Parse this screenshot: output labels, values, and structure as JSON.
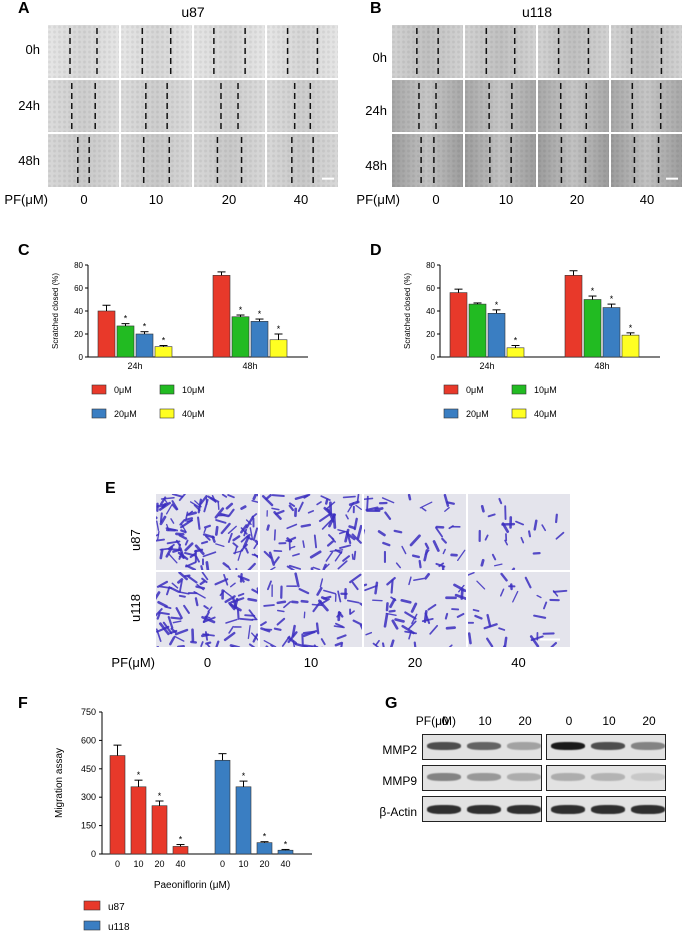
{
  "panel_labels": [
    "A",
    "B",
    "C",
    "D",
    "E",
    "F",
    "G"
  ],
  "panelA": {
    "title": "u87",
    "rows": [
      "0h",
      "24h",
      "48h"
    ],
    "pf_label": "PF(μM)",
    "doses": [
      "0",
      "10",
      "20",
      "40"
    ],
    "gaps": [
      [
        0.38,
        0.4,
        0.44,
        0.42
      ],
      [
        0.33,
        0.3,
        0.24,
        0.22
      ],
      [
        0.16,
        0.36,
        0.34,
        0.3
      ]
    ]
  },
  "panelB": {
    "title": "u118",
    "rows": [
      "0h",
      "24h",
      "48h"
    ],
    "pf_label": "PF(μM)",
    "doses": [
      "0",
      "10",
      "20",
      "40"
    ],
    "gaps": [
      [
        0.3,
        0.4,
        0.42,
        0.42
      ],
      [
        0.24,
        0.32,
        0.36,
        0.4
      ],
      [
        0.18,
        0.3,
        0.34,
        0.34
      ]
    ]
  },
  "panelE": {
    "rows": [
      "u87",
      "u118"
    ],
    "pf_label": "PF(μM)",
    "doses": [
      "0",
      "10",
      "20",
      "40"
    ],
    "density": [
      [
        0.95,
        0.6,
        0.3,
        0.18
      ],
      [
        0.7,
        0.5,
        0.35,
        0.22
      ]
    ]
  },
  "panelG": {
    "pf_label": "PF(μM)",
    "doses": [
      "0",
      "10",
      "20",
      "0",
      "10",
      "20"
    ],
    "rows": [
      "MMP2",
      "MMP9",
      "β-Actin"
    ],
    "band_intensity": [
      [
        0.7,
        0.6,
        0.3,
        0.95,
        0.7,
        0.45
      ],
      [
        0.45,
        0.35,
        0.25,
        0.25,
        0.22,
        0.12
      ],
      [
        0.85,
        0.85,
        0.85,
        0.85,
        0.85,
        0.85
      ]
    ]
  },
  "chart_data": [
    {
      "panel": "C",
      "type": "bar",
      "categories": [
        "24h",
        "48h"
      ],
      "ylabel": "Scratched closed (%)",
      "ylim": [
        0,
        80
      ],
      "yticks": [
        "0",
        "20",
        "40",
        "60",
        "80"
      ],
      "series": [
        {
          "name": "0μM",
          "color": "#e8392a",
          "values": [
            40,
            71
          ],
          "errors": [
            5,
            3
          ],
          "sig": [
            "",
            ""
          ]
        },
        {
          "name": "10μM",
          "color": "#22bb22",
          "values": [
            27,
            35
          ],
          "errors": [
            2,
            1.5
          ],
          "sig": [
            "*",
            "*"
          ]
        },
        {
          "name": "20μM",
          "color": "#3a7ec2",
          "values": [
            20,
            31
          ],
          "errors": [
            2,
            2
          ],
          "sig": [
            "*",
            "*"
          ]
        },
        {
          "name": "40μM",
          "color": "#ffff22",
          "values": [
            9,
            15
          ],
          "errors": [
            1,
            5
          ],
          "sig": [
            "*",
            "*"
          ]
        }
      ]
    },
    {
      "panel": "D",
      "type": "bar",
      "categories": [
        "24h",
        "48h"
      ],
      "ylabel": "Scratched closed (%)",
      "ylim": [
        0,
        80
      ],
      "yticks": [
        "0",
        "20",
        "40",
        "60",
        "80"
      ],
      "series": [
        {
          "name": "0μM",
          "color": "#e8392a",
          "values": [
            56,
            71
          ],
          "errors": [
            3,
            4
          ],
          "sig": [
            "",
            ""
          ]
        },
        {
          "name": "10μM",
          "color": "#22bb22",
          "values": [
            46,
            50
          ],
          "errors": [
            1,
            3
          ],
          "sig": [
            "",
            "*"
          ]
        },
        {
          "name": "20μM",
          "color": "#3a7ec2",
          "values": [
            38,
            43
          ],
          "errors": [
            3,
            3
          ],
          "sig": [
            "*",
            "*"
          ]
        },
        {
          "name": "40μM",
          "color": "#ffff22",
          "values": [
            8,
            19
          ],
          "errors": [
            2,
            2
          ],
          "sig": [
            "*",
            "*"
          ]
        }
      ]
    },
    {
      "panel": "F",
      "type": "bar",
      "ylabel": "Migration assay",
      "xlabel": "Paeoniflorin (μM)",
      "ylim": [
        0,
        750
      ],
      "yticks": [
        "0",
        "150",
        "300",
        "450",
        "600",
        "750"
      ],
      "x_ticks": [
        "0",
        "10",
        "20",
        "40",
        "0",
        "10",
        "20",
        "40"
      ],
      "series": [
        {
          "name": "u87",
          "color": "#e8392a",
          "values": [
            520,
            355,
            255,
            40
          ],
          "errors": [
            55,
            35,
            25,
            10
          ],
          "sig": [
            "",
            "*",
            "*",
            "*"
          ]
        },
        {
          "name": "u118",
          "color": "#3a7ec2",
          "values": [
            495,
            355,
            60,
            20
          ],
          "errors": [
            35,
            30,
            5,
            4
          ],
          "sig": [
            "",
            "*",
            "*",
            "*"
          ]
        }
      ]
    }
  ]
}
